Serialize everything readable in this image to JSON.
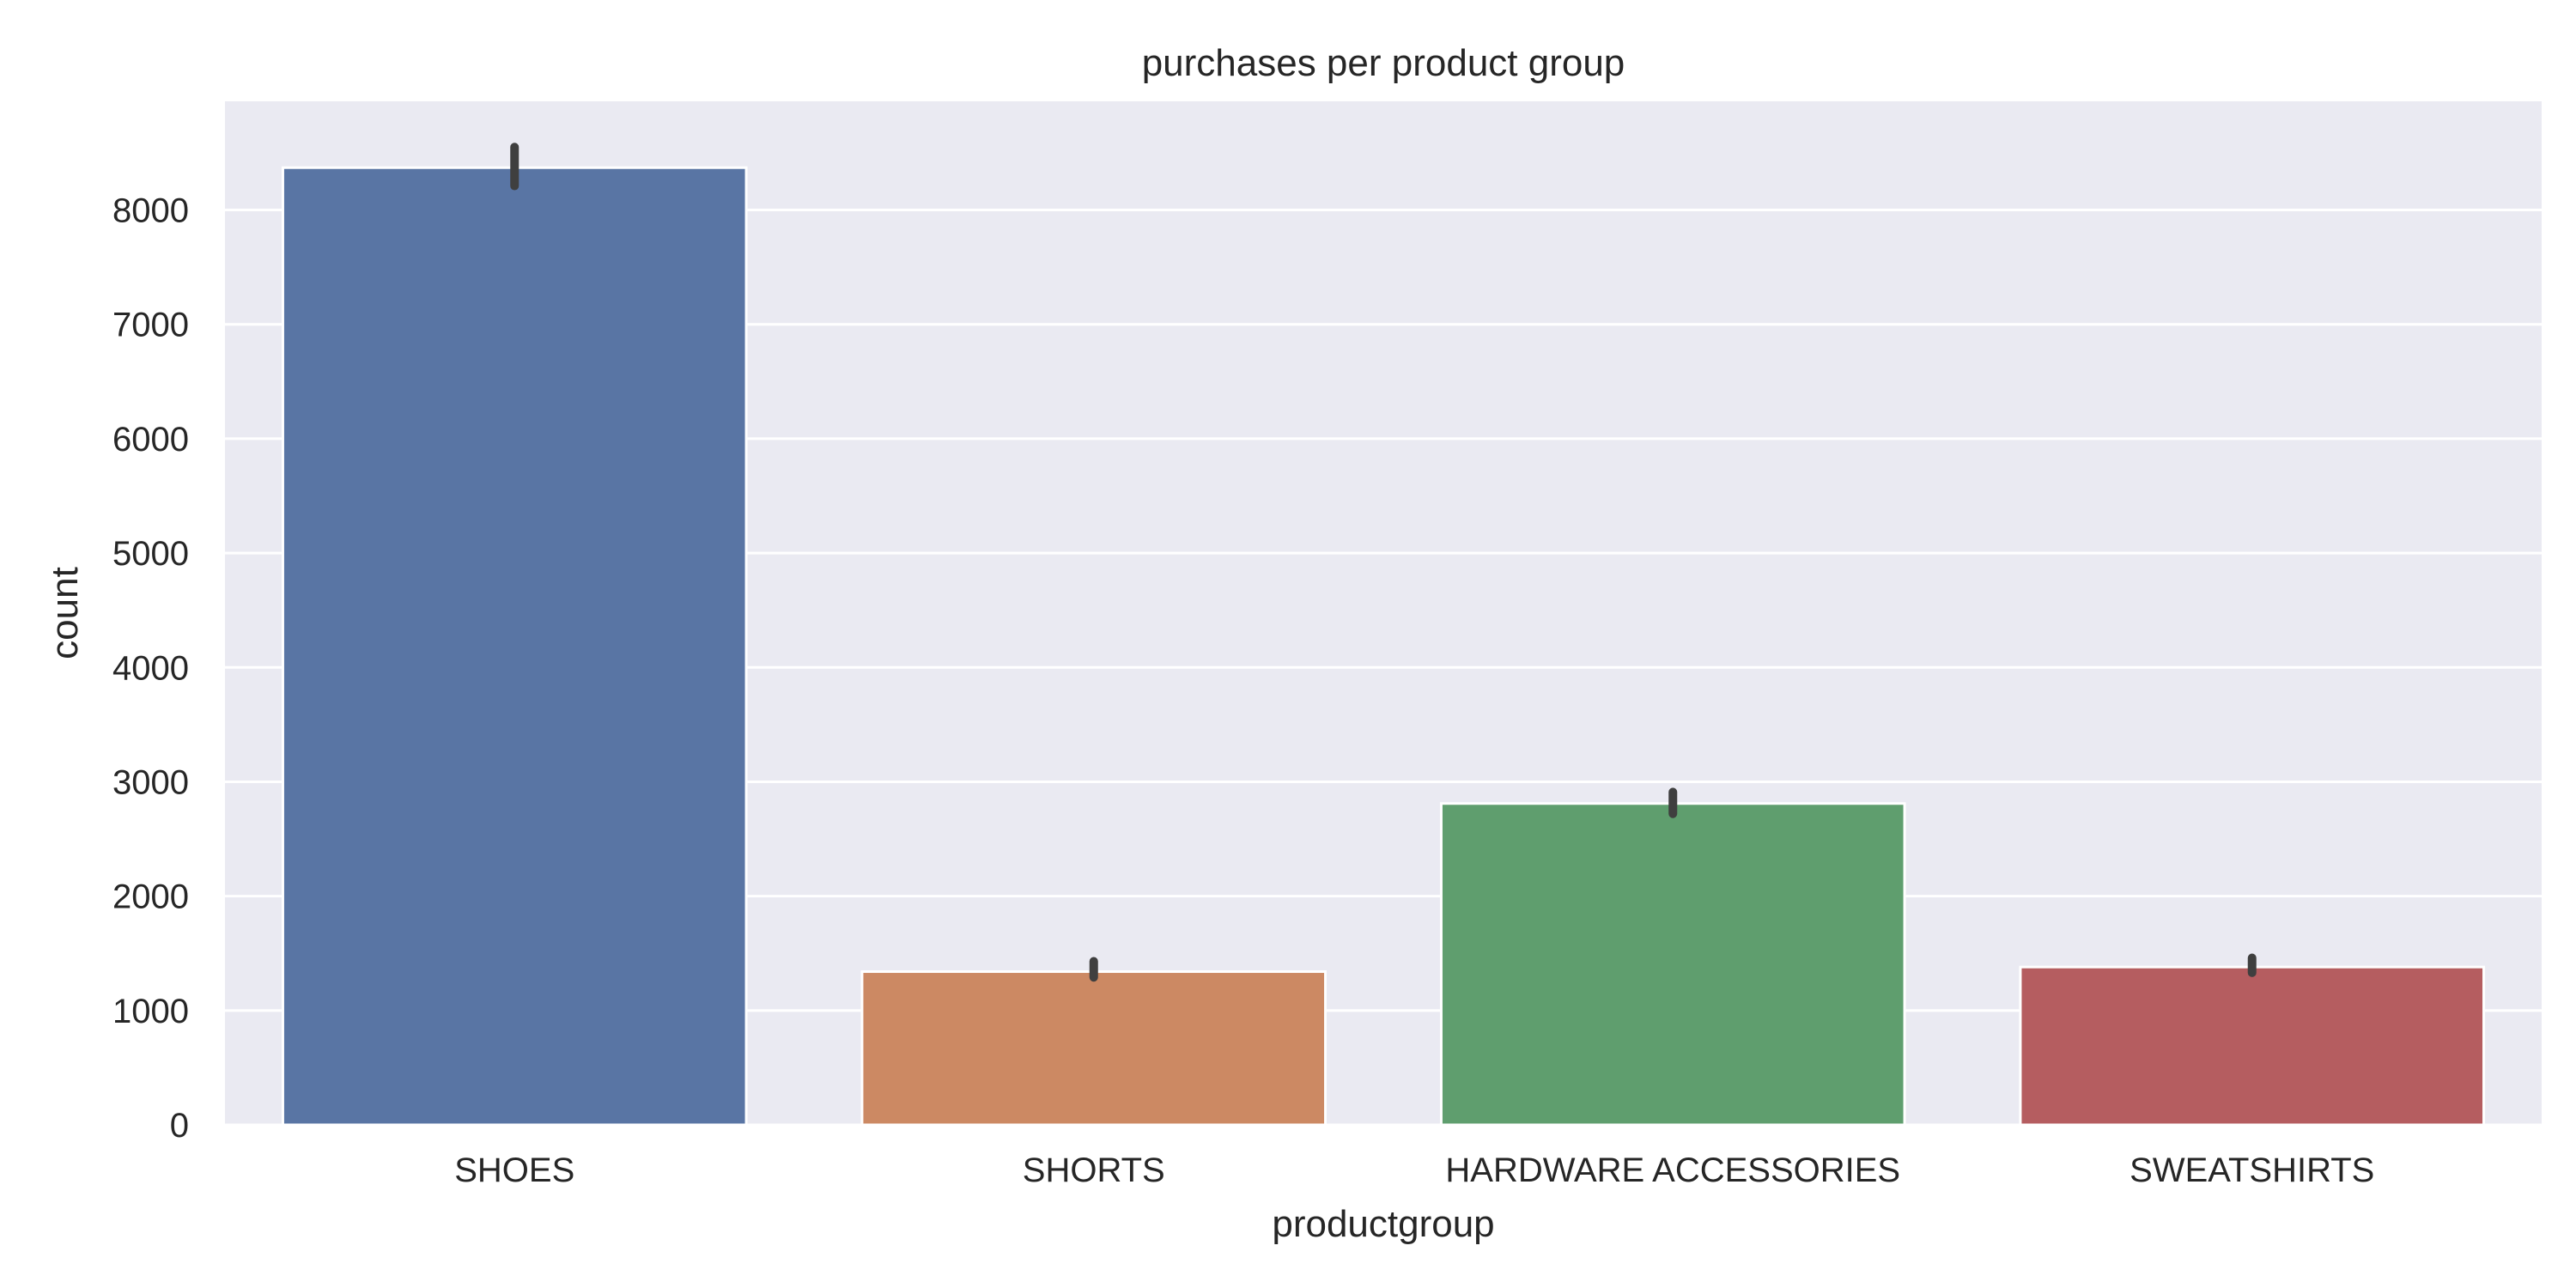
{
  "chart_data": {
    "type": "bar",
    "title": "purchases per product group",
    "xlabel": "productgroup",
    "ylabel": "count",
    "categories": [
      "SHOES",
      "SHORTS",
      "HARDWARE ACCESSORIES",
      "SWEATSHIRTS"
    ],
    "values": [
      8370,
      1340,
      2810,
      1380
    ],
    "error_bars": [
      [
        8210,
        8550
      ],
      [
        1290,
        1430
      ],
      [
        2720,
        2910
      ],
      [
        1330,
        1460
      ]
    ],
    "colors": [
      "#5975a4",
      "#cc8963",
      "#5f9e6e",
      "#b55d60"
    ],
    "ylim": [
      0,
      8950
    ],
    "yticks": [
      0,
      1000,
      2000,
      3000,
      4000,
      5000,
      6000,
      7000,
      8000
    ],
    "grid": true,
    "background_color": "#eaeaf2",
    "grid_color": "#ffffff",
    "error_bar_color": "#3f3f3f"
  }
}
